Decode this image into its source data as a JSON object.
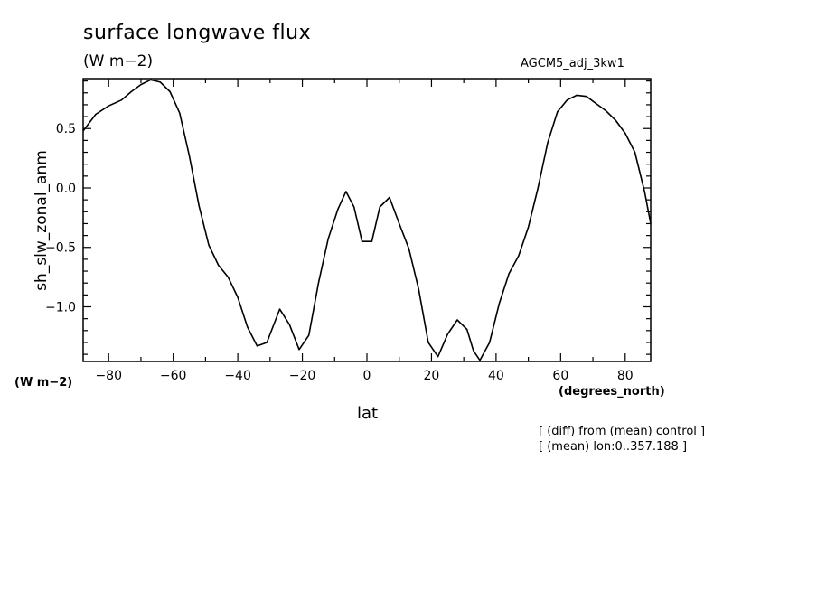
{
  "header": {
    "title": "surface longwave flux",
    "units": "(W m−2)",
    "run_name": "AGCM5_adj_3kw1"
  },
  "axes": {
    "y_units": "(W m−2)",
    "x_units": "(degrees_north)"
  },
  "notes": {
    "line1": "[ (diff) from (mean) control ]",
    "line2": "[ (mean) lon:0..357.188 ]"
  },
  "chart_data": {
    "type": "line",
    "title": "surface longwave flux",
    "xlabel": "lat",
    "ylabel": "sh_slw_zonal_anm",
    "xlim": [
      -87.9,
      87.9
    ],
    "ylim": [
      -1.46,
      0.92
    ],
    "x_ticks": [
      -80,
      -60,
      -40,
      -20,
      0,
      20,
      40,
      60,
      80
    ],
    "x_tick_labels": [
      "−80",
      "−60",
      "−40",
      "−20",
      "0",
      "20",
      "40",
      "60",
      "80"
    ],
    "y_ticks": [
      0.5,
      0.0,
      -0.5,
      -1.0
    ],
    "y_tick_labels": [
      "0.5",
      "0.0",
      "−0.5",
      "−1.0"
    ],
    "grid": false,
    "color": "#000000",
    "series": [
      {
        "x": [
          -87.9,
          -84,
          -80,
          -76,
          -73,
          -70,
          -67,
          -64,
          -61,
          -58,
          -55,
          -52,
          -49,
          -46,
          -43,
          -40,
          -37,
          -34,
          -31,
          -27,
          -24,
          -21,
          -18,
          -15,
          -12,
          -9,
          -6.5,
          -4,
          -1.5,
          1.5,
          4,
          7,
          10,
          13,
          16,
          19,
          22,
          25,
          28,
          31,
          33,
          35,
          38,
          41,
          44,
          47,
          50,
          53,
          56,
          59,
          62,
          65,
          68,
          71,
          74,
          77,
          80,
          83,
          86,
          87.9
        ],
        "y": [
          0.48,
          0.62,
          0.69,
          0.74,
          0.81,
          0.87,
          0.91,
          0.89,
          0.81,
          0.63,
          0.27,
          -0.15,
          -0.48,
          -0.65,
          -0.75,
          -0.92,
          -1.17,
          -1.33,
          -1.3,
          -1.02,
          -1.15,
          -1.36,
          -1.24,
          -0.8,
          -0.43,
          -0.18,
          -0.03,
          -0.16,
          -0.45,
          -0.45,
          -0.16,
          -0.08,
          -0.3,
          -0.51,
          -0.85,
          -1.3,
          -1.42,
          -1.23,
          -1.11,
          -1.19,
          -1.37,
          -1.45,
          -1.3,
          -0.97,
          -0.72,
          -0.57,
          -0.33,
          0.0,
          0.38,
          0.64,
          0.74,
          0.78,
          0.77,
          0.71,
          0.65,
          0.57,
          0.46,
          0.3,
          -0.03,
          -0.3
        ]
      }
    ]
  }
}
